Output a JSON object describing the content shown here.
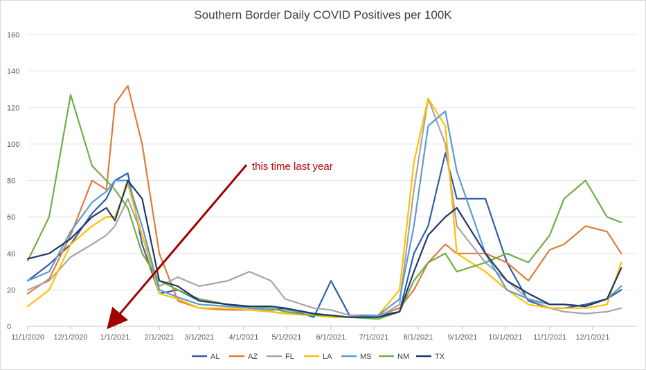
{
  "chart_data": {
    "type": "line",
    "title": "Southern Border Daily COVID Positives per 100K",
    "xlabel": "",
    "ylabel": "",
    "ylim": [
      0,
      160
    ],
    "yticks": [
      "0",
      "20",
      "40",
      "60",
      "80",
      "100",
      "120",
      "140",
      "160"
    ],
    "xticks": [
      "11/1/2020",
      "12/1/2020",
      "1/1/2021",
      "2/1/2021",
      "3/1/2021",
      "4/1/2021",
      "5/1/2021",
      "6/1/2021",
      "7/1/2021",
      "8/1/2021",
      "9/1/2021",
      "10/1/2021",
      "11/1/2021",
      "12/1/2021"
    ],
    "grid": "horizontal",
    "legend": "bottom",
    "annotation": {
      "text": "this time last year",
      "color": "#c00000"
    },
    "x_dates_as_days_since_2020-11-01": [
      0,
      15,
      30,
      45,
      55,
      61,
      70,
      80,
      92,
      105,
      120,
      140,
      155,
      170,
      180,
      200,
      212,
      225,
      245,
      260,
      270,
      280,
      292,
      300,
      320,
      335,
      350,
      365,
      375,
      390,
      405,
      415
    ],
    "series": [
      {
        "name": "AL",
        "color": "#2e5fa8",
        "values": [
          25,
          34,
          45,
          62,
          70,
          80,
          84,
          45,
          18,
          20,
          14,
          12,
          10,
          9,
          10,
          5,
          25,
          6,
          6,
          8,
          40,
          55,
          95,
          70,
          70,
          35,
          14,
          10,
          10,
          12,
          15,
          20
        ]
      },
      {
        "name": "AZ",
        "color": "#e07b39",
        "values": [
          18,
          26,
          50,
          80,
          75,
          122,
          132,
          100,
          40,
          14,
          10,
          9,
          9,
          8,
          7,
          6,
          6,
          5,
          6,
          10,
          20,
          35,
          45,
          40,
          40,
          35,
          25,
          42,
          45,
          55,
          52,
          40
        ]
      },
      {
        "name": "FL",
        "color": "#a5a5a5",
        "values": [
          20,
          25,
          38,
          45,
          50,
          55,
          70,
          50,
          22,
          27,
          22,
          25,
          30,
          25,
          15,
          10,
          9,
          6,
          5,
          12,
          75,
          125,
          100,
          55,
          35,
          25,
          15,
          10,
          8,
          7,
          8,
          10
        ]
      },
      {
        "name": "LA",
        "color": "#ffc000",
        "values": [
          11,
          20,
          45,
          55,
          60,
          60,
          78,
          50,
          18,
          15,
          10,
          10,
          9,
          8,
          7,
          6,
          5,
          5,
          6,
          20,
          90,
          125,
          110,
          40,
          30,
          20,
          12,
          10,
          10,
          10,
          12,
          35
        ]
      },
      {
        "name": "MS",
        "color": "#5b9bd5",
        "values": [
          25,
          30,
          52,
          68,
          74,
          80,
          80,
          55,
          20,
          16,
          12,
          11,
          10,
          9,
          9,
          7,
          6,
          5,
          6,
          15,
          55,
          110,
          118,
          85,
          40,
          20,
          15,
          12,
          12,
          11,
          15,
          22
        ]
      },
      {
        "name": "NM",
        "color": "#70ad47",
        "values": [
          36,
          60,
          127,
          88,
          80,
          75,
          65,
          40,
          25,
          20,
          15,
          12,
          11,
          10,
          8,
          6,
          6,
          5,
          4,
          8,
          25,
          35,
          40,
          30,
          35,
          40,
          35,
          50,
          70,
          80,
          60,
          57
        ]
      },
      {
        "name": "TX",
        "color": "#1f3864",
        "values": [
          37,
          40,
          48,
          60,
          65,
          58,
          80,
          70,
          25,
          22,
          14,
          12,
          11,
          11,
          10,
          7,
          6,
          5,
          5,
          8,
          30,
          50,
          60,
          65,
          40,
          25,
          18,
          12,
          12,
          11,
          15,
          32
        ]
      }
    ]
  }
}
